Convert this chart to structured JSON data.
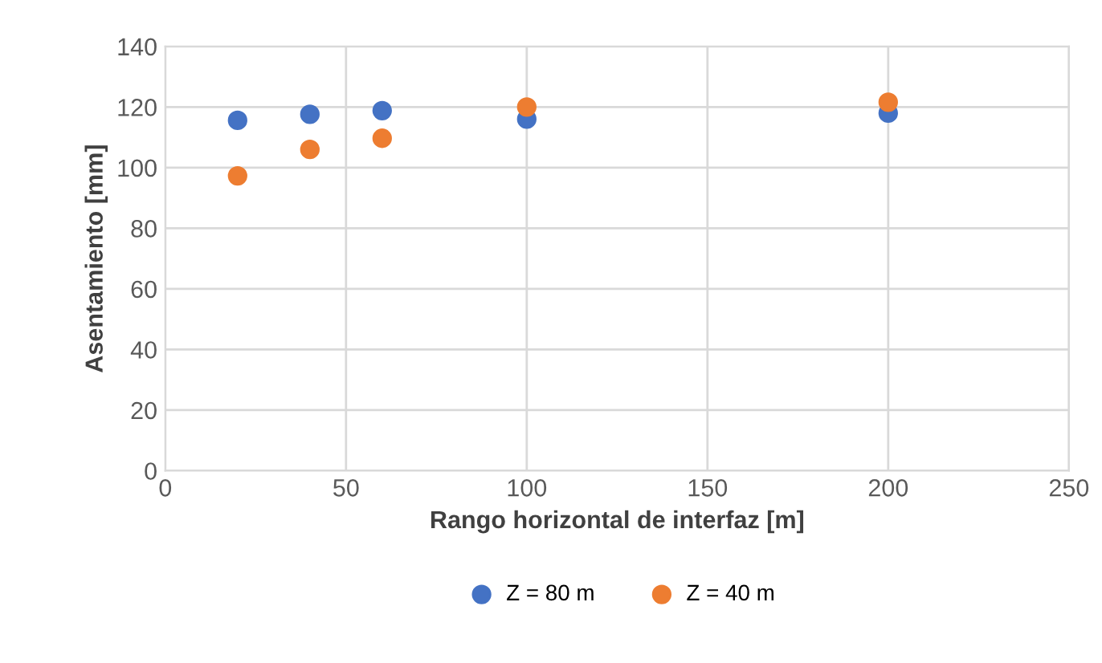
{
  "chart_data": {
    "type": "scatter",
    "xlabel": "Rango horizontal de interfaz [m]",
    "ylabel": "Asentamiento [mm]",
    "x": [
      20,
      40,
      60,
      100,
      200
    ],
    "series": [
      {
        "name": "Z = 80 m",
        "color": "#4472c4",
        "values": [
          115.6,
          117.6,
          118.8,
          116,
          118
        ]
      },
      {
        "name": "Z = 40 m",
        "color": "#ed7d31",
        "values": [
          97.3,
          106,
          109.7,
          120,
          121.6
        ]
      }
    ],
    "xlim": [
      0,
      250
    ],
    "xticks": [
      0,
      50,
      100,
      150,
      200,
      250
    ],
    "ylim": [
      0,
      140
    ],
    "yticks": [
      0,
      20,
      40,
      60,
      80,
      100,
      120,
      140
    ],
    "grid": true,
    "legend": "bottom",
    "marker": "circle"
  }
}
